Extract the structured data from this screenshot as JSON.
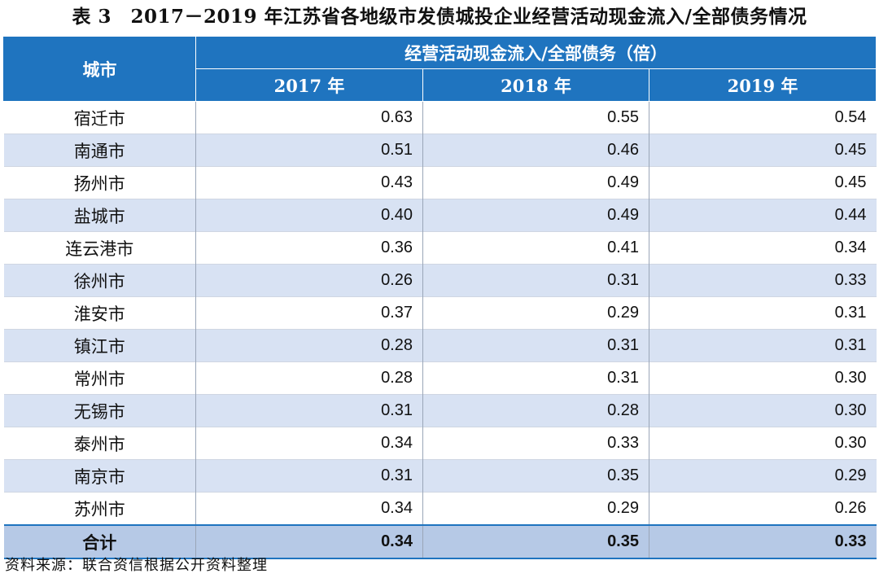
{
  "title": "表 3　2017－2019 年江苏省各地级市发债城投企业经营活动现金流入/全部债务情况",
  "header": {
    "city": "城市",
    "group": "经营活动现金流入/全部债务（倍）",
    "years": [
      "2017 年",
      "2018 年",
      "2019 年"
    ]
  },
  "rows": [
    {
      "city": "宿迁市",
      "v": [
        "0.63",
        "0.55",
        "0.54"
      ]
    },
    {
      "city": "南通市",
      "v": [
        "0.51",
        "0.46",
        "0.45"
      ]
    },
    {
      "city": "扬州市",
      "v": [
        "0.43",
        "0.49",
        "0.45"
      ]
    },
    {
      "city": "盐城市",
      "v": [
        "0.40",
        "0.49",
        "0.44"
      ]
    },
    {
      "city": "连云港市",
      "v": [
        "0.36",
        "0.41",
        "0.34"
      ]
    },
    {
      "city": "徐州市",
      "v": [
        "0.26",
        "0.31",
        "0.33"
      ]
    },
    {
      "city": "淮安市",
      "v": [
        "0.37",
        "0.29",
        "0.31"
      ]
    },
    {
      "city": "镇江市",
      "v": [
        "0.28",
        "0.31",
        "0.31"
      ]
    },
    {
      "city": "常州市",
      "v": [
        "0.28",
        "0.31",
        "0.30"
      ]
    },
    {
      "city": "无锡市",
      "v": [
        "0.31",
        "0.28",
        "0.30"
      ]
    },
    {
      "city": "泰州市",
      "v": [
        "0.34",
        "0.33",
        "0.30"
      ]
    },
    {
      "city": "南京市",
      "v": [
        "0.31",
        "0.35",
        "0.29"
      ]
    },
    {
      "city": "苏州市",
      "v": [
        "0.34",
        "0.29",
        "0.26"
      ]
    }
  ],
  "total": {
    "city": "合计",
    "v": [
      "0.34",
      "0.35",
      "0.33"
    ]
  },
  "source": "资料来源：联合资信根据公开资料整理"
}
